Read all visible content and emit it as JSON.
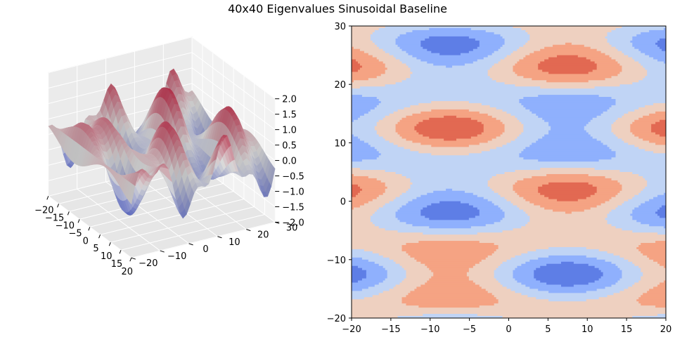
{
  "title": "40x40 Eigenvalues Sinusoidal Baseline",
  "colormap": [
    "#3b4cc0",
    "#dddddd",
    "#b40426"
  ],
  "chart_data": [
    {
      "type": "surface",
      "function": "sin(2*pi*x/30) * cos(2*pi*y/25) + 0.4*sin(2*pi*y/10)",
      "grid_size": [
        40,
        40
      ],
      "xlim": [
        -20,
        20
      ],
      "ylim": [
        -20,
        30
      ],
      "zlim": [
        -2,
        2
      ],
      "xticks": [
        "−20",
        "−15",
        "−10",
        "−5",
        "0",
        "5",
        "10",
        "15",
        "20"
      ],
      "yticks": [
        "−20",
        "−10",
        "0",
        "10",
        "20",
        "30"
      ],
      "zticks": [
        "−2.0",
        "−1.5",
        "−1.0",
        "−0.5",
        "0.0",
        "0.5",
        "1.0",
        "1.5",
        "2.0"
      ]
    },
    {
      "type": "contourf",
      "function": "sin(2*pi*x/30) * cos(2*pi*y/25) + 0.4*sin(2*pi*y/10)",
      "levels": [
        -1.5,
        -1.0,
        -0.5,
        0.0,
        0.5,
        1.0,
        1.5
      ],
      "colors": [
        "#3b4cc0",
        "#5e7ee6",
        "#8fb0fd",
        "#c0d4f5",
        "#eed0c0",
        "#f5a383",
        "#e26952",
        "#cc3b2e"
      ],
      "xlim": [
        -20,
        20
      ],
      "ylim": [
        -20,
        30
      ],
      "xticks": [
        "−20",
        "−15",
        "−10",
        "−5",
        "0",
        "5",
        "10",
        "15",
        "20"
      ],
      "yticks": [
        "−20",
        "−10",
        "0",
        "10",
        "20",
        "30"
      ]
    }
  ]
}
